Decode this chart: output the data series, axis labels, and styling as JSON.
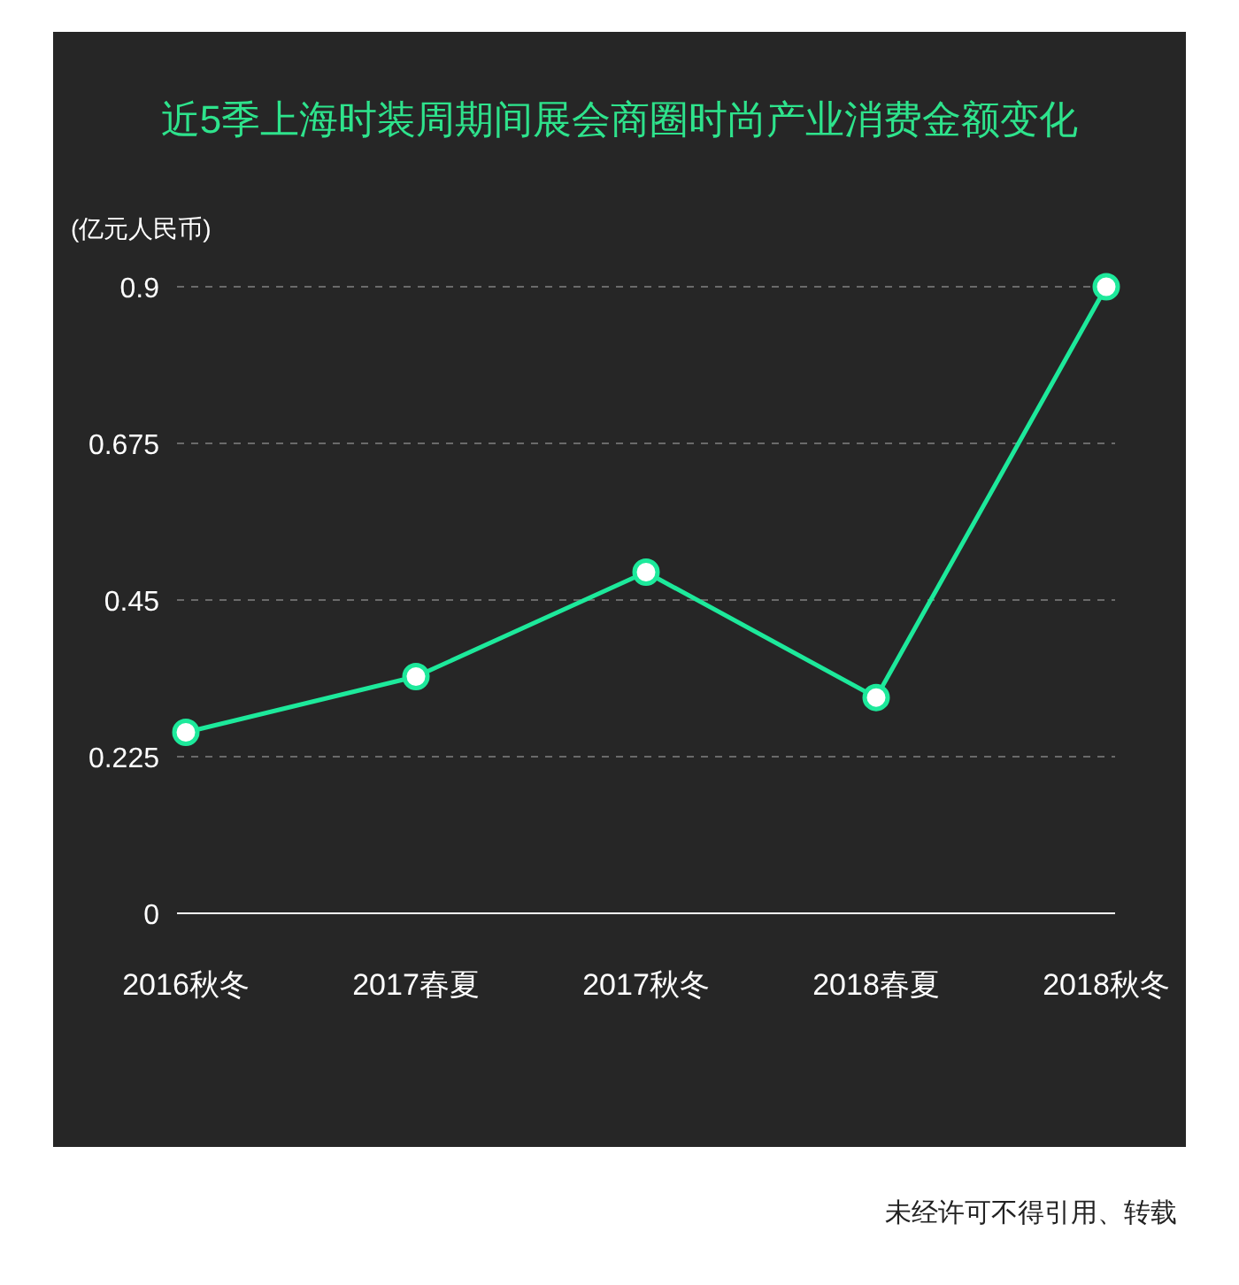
{
  "chart_data": {
    "type": "line",
    "title": "近5季上海时装周期间展会商圈时尚产业消费金额变化",
    "ylabel": "(亿元人民币)",
    "categories": [
      "2016秋冬",
      "2017春夏",
      "2017秋冬",
      "2018春夏",
      "2018秋冬"
    ],
    "series": [
      {
        "color": "#1de99b",
        "values": [
          0.26,
          0.34,
          0.49,
          0.31,
          0.9
        ]
      }
    ],
    "ylim": [
      0,
      0.9
    ],
    "yticks": [
      0,
      0.225,
      0.45,
      0.675,
      0.9
    ],
    "grid": "y",
    "marker": "circle",
    "line_style": "solid",
    "annotations": [
      "未经许可不得引用、转载"
    ]
  }
}
